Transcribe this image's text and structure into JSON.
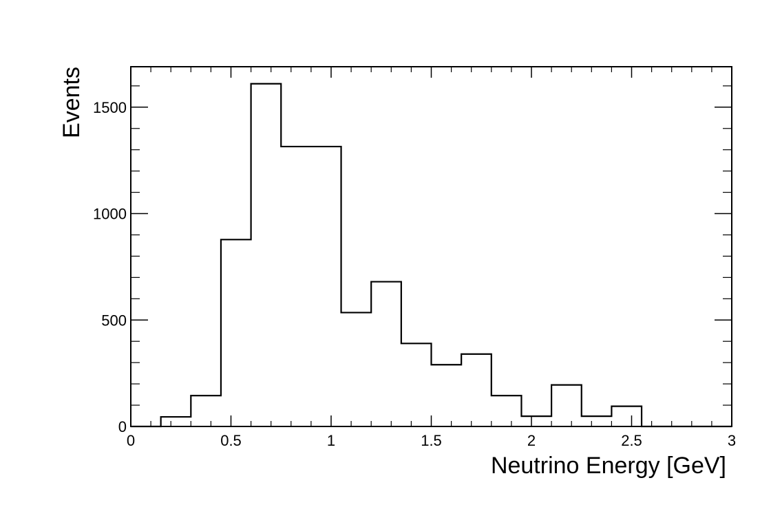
{
  "chart_data": {
    "type": "bar",
    "style": "step-histogram",
    "title": "",
    "xlabel": "Neutrino Energy [GeV]",
    "ylabel": "Events",
    "xlim": [
      0,
      3
    ],
    "ylim": [
      0,
      1690
    ],
    "x_ticks": [
      0,
      0.5,
      1,
      1.5,
      2,
      2.5,
      3
    ],
    "x_tick_labels": [
      "0",
      "0.5",
      "1",
      "1.5",
      "2",
      "2.5",
      "3"
    ],
    "y_ticks": [
      0,
      500,
      1000,
      1500
    ],
    "y_tick_labels": [
      "0",
      "500",
      "1000",
      "1500"
    ],
    "bin_edges": [
      0,
      0.15,
      0.3,
      0.45,
      0.6,
      0.75,
      0.9,
      1.05,
      1.2,
      1.35,
      1.5,
      1.65,
      1.8,
      1.95,
      2.1,
      2.25,
      2.4,
      2.55,
      2.7,
      2.85,
      3.0
    ],
    "values": [
      0,
      45,
      145,
      878,
      1610,
      1315,
      1315,
      535,
      680,
      390,
      290,
      340,
      145,
      48,
      195,
      48,
      95,
      0,
      0,
      0
    ],
    "line_color": "#000000",
    "grid": false,
    "legend": "none"
  }
}
